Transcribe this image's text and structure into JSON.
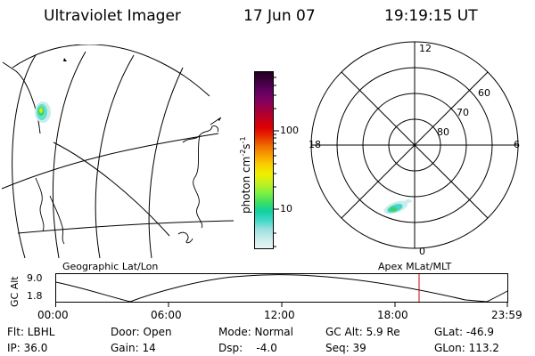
{
  "header": {
    "title": "Ultraviolet Imager",
    "date": "17 Jun 07",
    "time": "19:19:15 UT"
  },
  "colorbar": {
    "label": "photon cm",
    "label_sup1": "-2",
    "label_s": "s",
    "label_sup2": "-1",
    "ticks": [
      "100",
      "10"
    ],
    "colors": [
      "#e8f4f4",
      "#c8ecec",
      "#a0e0e0",
      "#40d8c8",
      "#10d0a0",
      "#40e060",
      "#80f040",
      "#c0f020",
      "#f0f000",
      "#f8d000",
      "#f8a000",
      "#f07000",
      "#e83000",
      "#e00000",
      "#c00020",
      "#a00040",
      "#800060",
      "#600060",
      "#400040",
      "#200020"
    ]
  },
  "polar_plot": {
    "mlt_labels": {
      "top": "12",
      "left": "18",
      "right": "6",
      "bottom": "0"
    },
    "lat_labels": [
      "60",
      "70",
      "80"
    ]
  },
  "geo_label": "Geographic Lat/Lon",
  "apex_label": "Apex MLat/MLT",
  "timeline": {
    "axis_label": "GC Alt",
    "y_top": "9.0",
    "y_bottom": "1.8",
    "x_labels": [
      "00:00",
      "06:00",
      "12:00",
      "18:00",
      "23:59"
    ]
  },
  "footer": {
    "flt": "Flt: LBHL",
    "ip": "IP: 36.0",
    "door": "Door: Open",
    "gain": "Gain: 14",
    "mode": "Mode: Normal",
    "dsp": "Dsp:    -4.0",
    "gc_alt": "GC Alt: 5.9 Re",
    "seq": "Seq: 39",
    "glat": "GLat: -46.9",
    "glon": "GLon: 113.2"
  }
}
